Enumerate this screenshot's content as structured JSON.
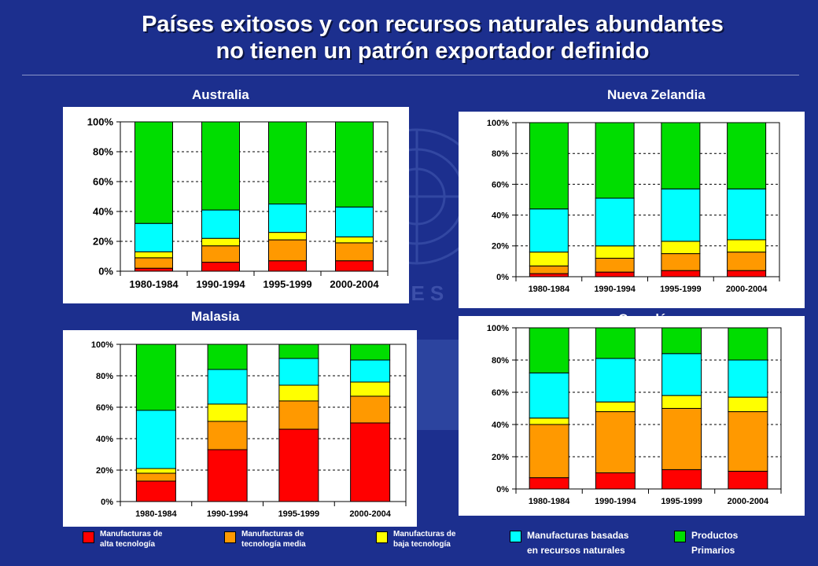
{
  "slide": {
    "title_line1": "Países exitosos y con recursos naturales abundantes",
    "title_line2": "no tienen un patrón exportador definido",
    "watermark_text": "NACIONES UNIDAS",
    "watermark_letters": "C E P A L"
  },
  "colors": {
    "background": "#1c2f8e",
    "alta": "#ff0000",
    "media": "#ff9900",
    "baja": "#ffff00",
    "recursos": "#00ffff",
    "primarios": "#00dd00"
  },
  "legend": [
    {
      "key": "alta",
      "label": "Manufacturas de\nalta tecnología"
    },
    {
      "key": "media",
      "label": "Manufacturas de\ntecnología media"
    },
    {
      "key": "baja",
      "label": "Manufacturas de\nbaja tecnología"
    },
    {
      "key": "recursos",
      "label": "Manufacturas  basadas\nen recursos naturales"
    },
    {
      "key": "primarios",
      "label": "Productos\nPrimarios"
    }
  ],
  "chart_data": [
    {
      "type": "bar",
      "stacked": true,
      "title": "Australia",
      "categories": [
        "1980-1984",
        "1990-1994",
        "1995-1999",
        "2000-2004"
      ],
      "yticks": [
        "0%",
        "20%",
        "40%",
        "60%",
        "80%",
        "100%"
      ],
      "ylim": [
        0,
        100
      ],
      "series": [
        {
          "name": "Manufacturas de alta tecnología",
          "key": "alta",
          "values": [
            2,
            6,
            7,
            7
          ]
        },
        {
          "name": "Manufacturas de tecnología media",
          "key": "media",
          "values": [
            7,
            11,
            14,
            12
          ]
        },
        {
          "name": "Manufacturas de baja tecnología",
          "key": "baja",
          "values": [
            4,
            5,
            5,
            4
          ]
        },
        {
          "name": "Manufacturas basadas en recursos naturales",
          "key": "recursos",
          "values": [
            19,
            19,
            19,
            20
          ]
        },
        {
          "name": "Productos Primarios",
          "key": "primarios",
          "values": [
            68,
            59,
            55,
            57
          ]
        }
      ]
    },
    {
      "type": "bar",
      "stacked": true,
      "title": "Nueva Zelandia",
      "categories": [
        "1980-1984",
        "1990-1994",
        "1995-1999",
        "2000-2004"
      ],
      "yticks": [
        "0%",
        "20%",
        "40%",
        "60%",
        "80%",
        "100%"
      ],
      "ylim": [
        0,
        100
      ],
      "series": [
        {
          "name": "Manufacturas de alta tecnología",
          "key": "alta",
          "values": [
            2,
            3,
            4,
            4
          ]
        },
        {
          "name": "Manufacturas de tecnología media",
          "key": "media",
          "values": [
            5,
            9,
            11,
            12
          ]
        },
        {
          "name": "Manufacturas de baja tecnología",
          "key": "baja",
          "values": [
            9,
            8,
            8,
            8
          ]
        },
        {
          "name": "Manufacturas basadas en recursos naturales",
          "key": "recursos",
          "values": [
            28,
            31,
            34,
            33
          ]
        },
        {
          "name": "Productos Primarios",
          "key": "primarios",
          "values": [
            56,
            49,
            43,
            43
          ]
        }
      ]
    },
    {
      "type": "bar",
      "stacked": true,
      "title": "Malasia",
      "categories": [
        "1980-1984",
        "1990-1994",
        "1995-1999",
        "2000-2004"
      ],
      "yticks": [
        "0%",
        "20%",
        "40%",
        "60%",
        "80%",
        "100%"
      ],
      "ylim": [
        0,
        100
      ],
      "series": [
        {
          "name": "Manufacturas de alta tecnología",
          "key": "alta",
          "values": [
            13,
            33,
            46,
            50
          ]
        },
        {
          "name": "Manufacturas de tecnología media",
          "key": "media",
          "values": [
            5,
            18,
            18,
            17
          ]
        },
        {
          "name": "Manufacturas de baja tecnología",
          "key": "baja",
          "values": [
            3,
            11,
            10,
            9
          ]
        },
        {
          "name": "Manufacturas basadas en recursos naturales",
          "key": "recursos",
          "values": [
            37,
            22,
            17,
            14
          ]
        },
        {
          "name": "Productos Primarios",
          "key": "primarios",
          "values": [
            42,
            16,
            9,
            10
          ]
        }
      ]
    },
    {
      "type": "bar",
      "stacked": true,
      "title": "Canadá",
      "categories": [
        "1980-1984",
        "1990-1994",
        "1995-1999",
        "2000-2004"
      ],
      "yticks": [
        "0%",
        "20%",
        "40%",
        "60%",
        "80%",
        "100%"
      ],
      "ylim": [
        0,
        100
      ],
      "series": [
        {
          "name": "Manufacturas de alta tecnología",
          "key": "alta",
          "values": [
            7,
            10,
            12,
            11
          ]
        },
        {
          "name": "Manufacturas de tecnología media",
          "key": "media",
          "values": [
            33,
            38,
            38,
            37
          ]
        },
        {
          "name": "Manufacturas de baja tecnología",
          "key": "baja",
          "values": [
            4,
            6,
            8,
            9
          ]
        },
        {
          "name": "Manufacturas basadas en recursos naturales",
          "key": "recursos",
          "values": [
            28,
            27,
            26,
            23
          ]
        },
        {
          "name": "Productos Primarios",
          "key": "primarios",
          "values": [
            28,
            19,
            16,
            20
          ]
        }
      ]
    }
  ]
}
